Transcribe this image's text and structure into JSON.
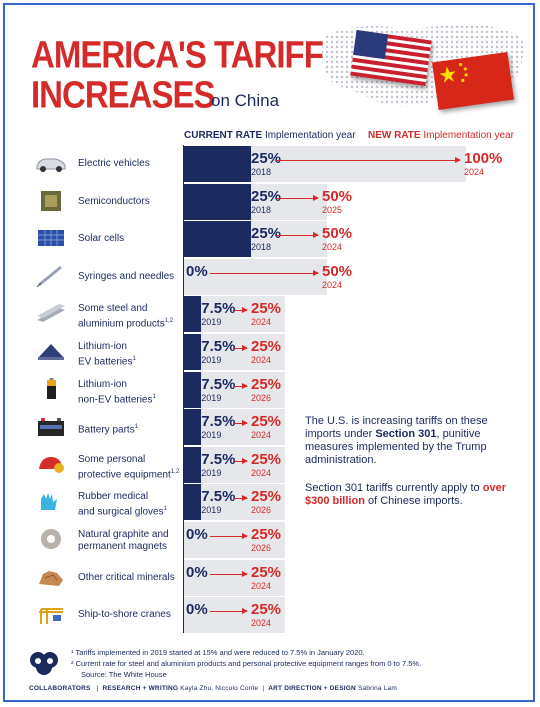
{
  "header": {
    "title_line1": "AMERICA'S TARIFF",
    "title_line2": "INCREASES",
    "subtitle": "on China",
    "current_rate_label": "CURRENT RATE",
    "new_rate_label": "NEW RATE",
    "implementation_year_label": "Implementation year"
  },
  "chart_data": {
    "type": "bar",
    "title": "AMERICA'S TARIFF INCREASES on China",
    "xlim": [
      0,
      100
    ],
    "series": [
      {
        "name": "CURRENT RATE",
        "color": "#1b2a5e"
      },
      {
        "name": "NEW RATE",
        "color": "#d42a2a"
      }
    ],
    "items": [
      {
        "category": "Electric vehicles",
        "sup": "",
        "current": 25,
        "current_label": "25%",
        "current_year": "2018",
        "new": 100,
        "new_label": "100%",
        "new_year": "2024",
        "icon": "electric-car-icon"
      },
      {
        "category": "Semiconductors",
        "sup": "",
        "current": 25,
        "current_label": "25%",
        "current_year": "2018",
        "new": 50,
        "new_label": "50%",
        "new_year": "2025",
        "icon": "chip-icon"
      },
      {
        "category": "Solar cells",
        "sup": "",
        "current": 25,
        "current_label": "25%",
        "current_year": "2018",
        "new": 50,
        "new_label": "50%",
        "new_year": "2024",
        "icon": "solar-panel-icon"
      },
      {
        "category": "Syringes and needles",
        "sup": "",
        "current": 0,
        "current_label": "0%",
        "current_year": "",
        "new": 50,
        "new_label": "50%",
        "new_year": "2024",
        "icon": "syringe-icon"
      },
      {
        "category": "Some steel and aluminium products",
        "sup": "1,2",
        "current": 7.5,
        "current_label": "7.5%",
        "current_year": "2019",
        "new": 25,
        "new_label": "25%",
        "new_year": "2024",
        "icon": "steel-beams-icon"
      },
      {
        "category": "Lithium-ion EV batteries",
        "sup": "1",
        "current": 7.5,
        "current_label": "7.5%",
        "current_year": "2019",
        "new": 25,
        "new_label": "25%",
        "new_year": "2024",
        "icon": "ev-battery-icon"
      },
      {
        "category": "Lithium-ion non-EV batteries",
        "sup": "1",
        "current": 7.5,
        "current_label": "7.5%",
        "current_year": "2019",
        "new": 25,
        "new_label": "25%",
        "new_year": "2026",
        "icon": "aa-battery-icon"
      },
      {
        "category": "Battery parts",
        "sup": "1",
        "current": 7.5,
        "current_label": "7.5%",
        "current_year": "2019",
        "new": 25,
        "new_label": "25%",
        "new_year": "2024",
        "icon": "car-battery-icon"
      },
      {
        "category": "Some personal protective equipment",
        "sup": "1,2",
        "current": 7.5,
        "current_label": "7.5%",
        "current_year": "2019",
        "new": 25,
        "new_label": "25%",
        "new_year": "2024",
        "icon": "hard-hat-icon"
      },
      {
        "category": "Rubber medical and surgical gloves",
        "sup": "1",
        "current": 7.5,
        "current_label": "7.5%",
        "current_year": "2019",
        "new": 25,
        "new_label": "25%",
        "new_year": "2026",
        "icon": "gloves-icon"
      },
      {
        "category": "Natural graphite and permanent magnets",
        "sup": "",
        "current": 0,
        "current_label": "0%",
        "current_year": "",
        "new": 25,
        "new_label": "25%",
        "new_year": "2026",
        "icon": "magnet-ring-icon"
      },
      {
        "category": "Other critical minerals",
        "sup": "",
        "current": 0,
        "current_label": "0%",
        "current_year": "",
        "new": 25,
        "new_label": "25%",
        "new_year": "2024",
        "icon": "minerals-icon"
      },
      {
        "category": "Ship-to-shore cranes",
        "sup": "",
        "current": 0,
        "current_label": "0%",
        "current_year": "",
        "new": 25,
        "new_label": "25%",
        "new_year": "2024",
        "icon": "crane-icon"
      }
    ]
  },
  "labels_lines": [
    [
      "Electric vehicles"
    ],
    [
      "Semiconductors"
    ],
    [
      "Solar cells"
    ],
    [
      "Syringes and needles"
    ],
    [
      "Some steel and",
      "aluminium products"
    ],
    [
      "Lithium-ion",
      "EV batteries"
    ],
    [
      "Lithium-ion",
      "non-EV batteries"
    ],
    [
      "Battery parts"
    ],
    [
      "Some personal",
      "protective equipment"
    ],
    [
      "Rubber medical",
      "and surgical gloves"
    ],
    [
      "Natural graphite and",
      "permanent magnets"
    ],
    [
      "Other critical minerals"
    ],
    [
      "Ship-to-shore cranes"
    ]
  ],
  "note": {
    "p1_a": "The U.S. is increasing tariffs on these imports under ",
    "p1_b": "Section 301",
    "p1_c": ", punitive measures implemented by the Trump administration.",
    "p2_a": "Section 301 tariffs currently apply to ",
    "p2_b": "over $300 billion",
    "p2_c": " of Chinese imports."
  },
  "footnotes": {
    "f1": "¹ Tariffs implemented in 2019 started at 15% and were reduced to 7.5% in January 2020.",
    "f2": "² Current rate for steel and aluminium products and personal protective equipment ranges from 0 to 7.5%.",
    "source": "Source: The White House"
  },
  "footer": {
    "brand": "COLLABORATORS",
    "research_label": "RESEARCH + WRITING",
    "research_names": "Kayla Zhu, Niccolo Conte",
    "design_label": "ART DIRECTION + DESIGN",
    "design_names": "Sabrina Lam"
  },
  "colors": {
    "navy": "#1b2a5e",
    "red": "#d42a2a",
    "bar_bg": "#e6e7eb"
  }
}
